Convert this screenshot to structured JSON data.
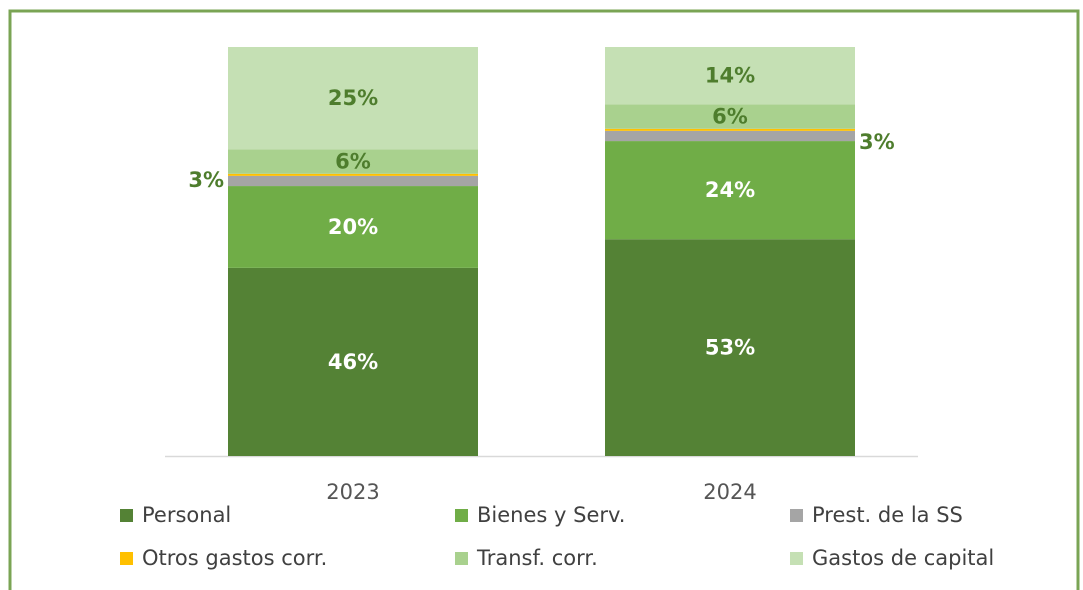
{
  "chart_data": {
    "type": "stacked_bar",
    "categories": [
      "2023",
      "2024"
    ],
    "ylim": [
      0,
      100
    ],
    "legend": "bottom",
    "series": [
      {
        "name": "Personal",
        "color": "#548235",
        "label_color": "#ffffff",
        "values": [
          46,
          53
        ],
        "value_labels": [
          "46%",
          "53%"
        ]
      },
      {
        "name": "Bienes y Serv.",
        "color": "#70ad47",
        "label_color": "#ffffff",
        "values": [
          20,
          24
        ],
        "value_labels": [
          "20%",
          "24%"
        ]
      },
      {
        "name": "Prest. de la SS",
        "color": "#a5a5a5",
        "label_color": "#4e7d2d",
        "values": [
          2.5,
          2.5
        ],
        "value_labels": [
          "3%",
          "3%"
        ]
      },
      {
        "name": "Otros gastos corr.",
        "color": "#ffc000",
        "label_color": "#4e7d2d",
        "values": [
          0.5,
          0.5
        ],
        "value_labels": [
          null,
          null
        ]
      },
      {
        "name": "Transf. corr.",
        "color": "#a9d18e",
        "label_color": "#4e7d2d",
        "values": [
          6,
          6
        ],
        "value_labels": [
          "6%",
          "6%"
        ]
      },
      {
        "name": "Gastos de capital",
        "color": "#c5e0b4",
        "label_color": "#4e7d2d",
        "values": [
          25,
          14
        ],
        "value_labels": [
          "25%",
          "14%"
        ]
      }
    ]
  }
}
